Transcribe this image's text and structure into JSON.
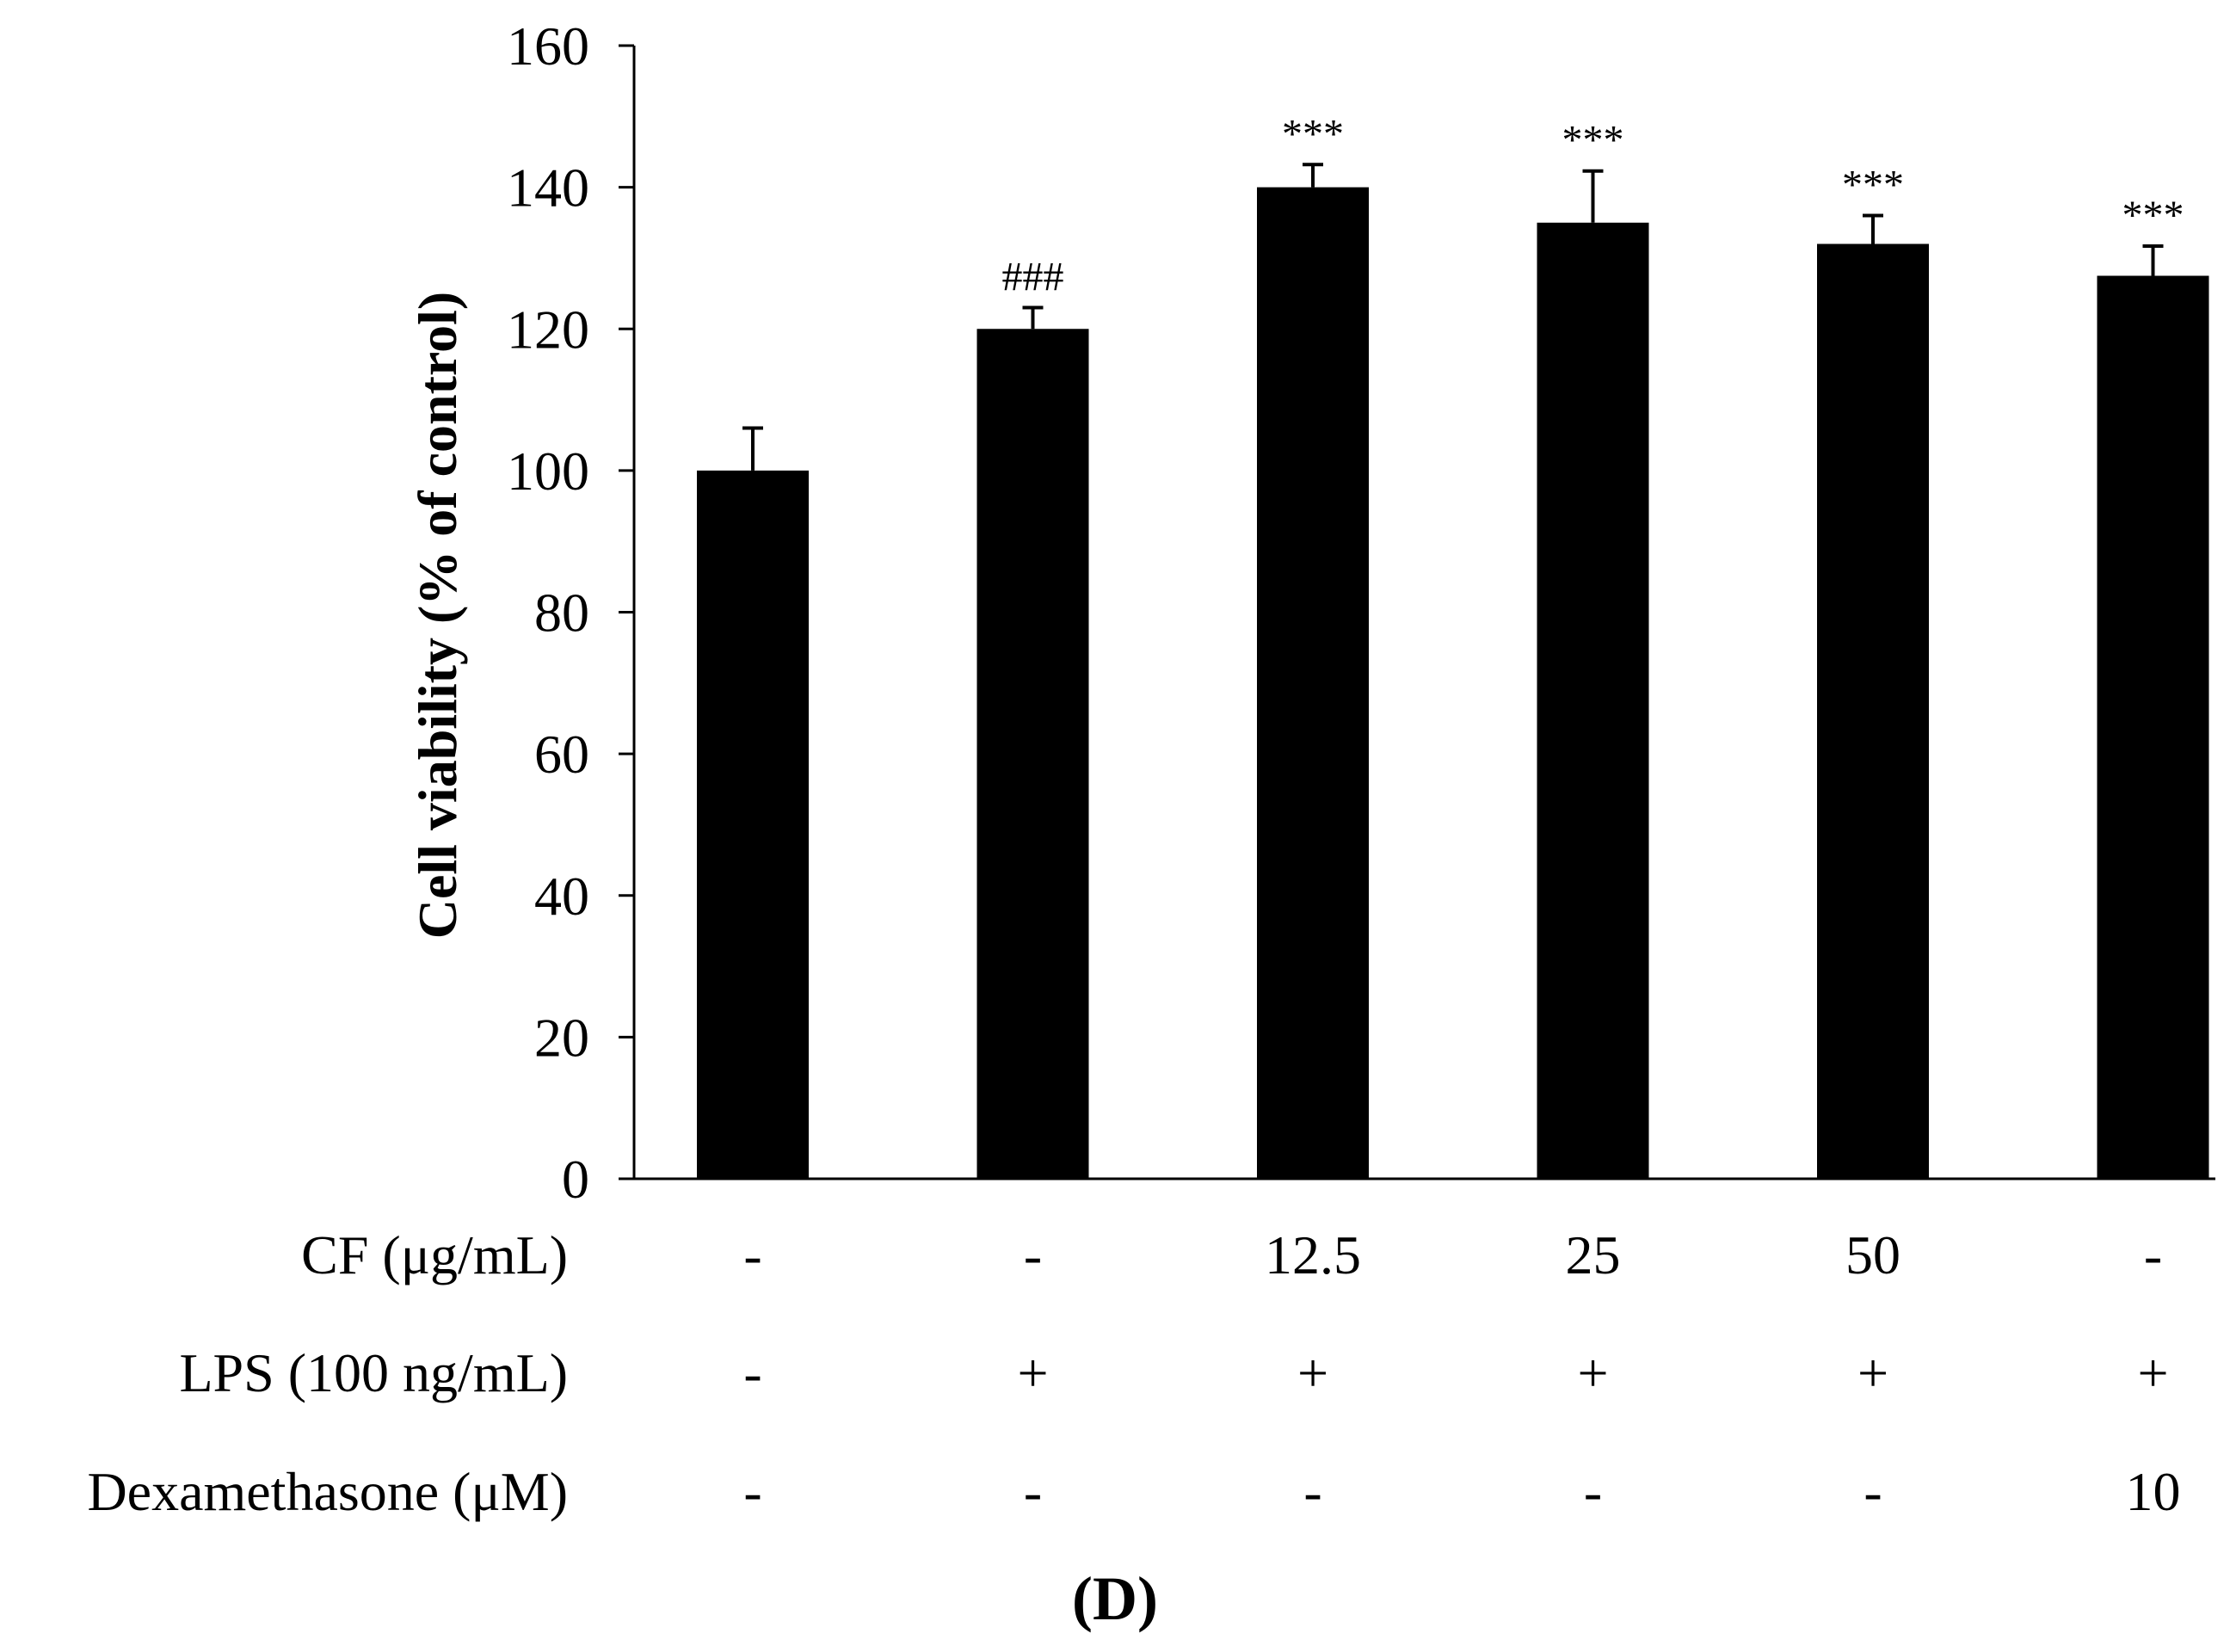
{
  "chart_data": {
    "type": "bar",
    "title": "",
    "xlabel": "",
    "ylabel": "Cell viability (% of control)",
    "ylim": [
      0,
      160
    ],
    "yticks": [
      0,
      20,
      40,
      60,
      80,
      100,
      120,
      140,
      160
    ],
    "grid": false,
    "legend": "none",
    "color": "#000000",
    "series": [
      {
        "name": "Cell viability",
        "values": [
          100,
          120,
          140,
          135,
          132,
          127.5
        ],
        "errors": [
          6,
          3,
          3.2,
          7.3,
          4,
          4.2
        ],
        "annotations": [
          "",
          "###",
          "***",
          "***",
          "***",
          "***"
        ]
      }
    ],
    "conditions": [
      {
        "label": "CF (μg/mL)",
        "values": [
          "-",
          "-",
          "12.5",
          "25",
          "50",
          "-"
        ]
      },
      {
        "label": "LPS (100 ng/mL)",
        "values": [
          "-",
          "+",
          "+",
          "+",
          "+",
          "+"
        ]
      },
      {
        "label": "Dexamethasone (μM)",
        "values": [
          "-",
          "-",
          "-",
          "-",
          "-",
          "10"
        ]
      }
    ],
    "panel_label": "(D)"
  }
}
